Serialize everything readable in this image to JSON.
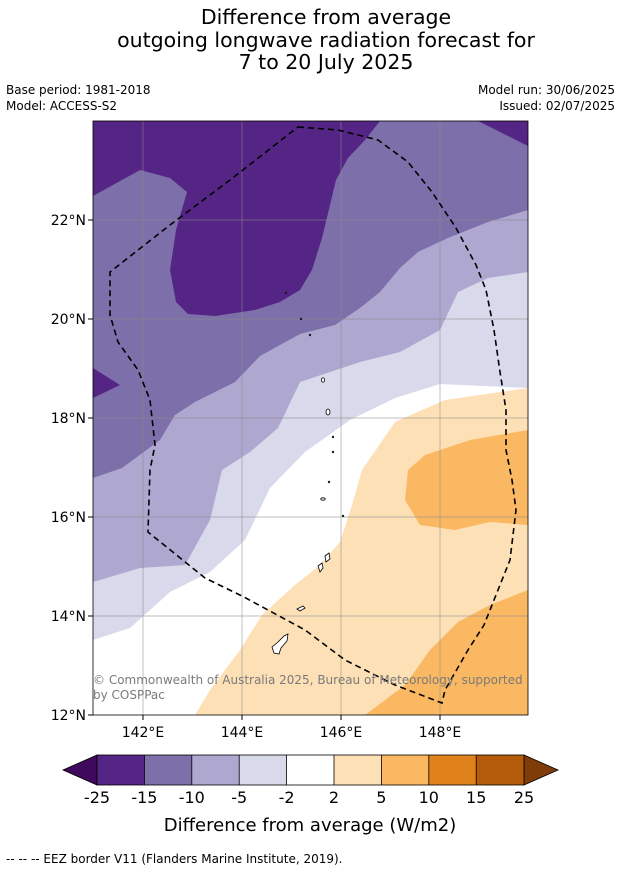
{
  "title": {
    "line1": "Difference from average",
    "line2": "outgoing longwave radiation forecast for",
    "line3": "7 to 20 July 2025"
  },
  "meta": {
    "base_period": "Base period: 1981-2018",
    "model": "Model: ACCESS-S2",
    "model_run": "Model run: 30/06/2025",
    "issued": "Issued: 02/07/2025"
  },
  "map": {
    "lat_labels": [
      "12°N",
      "14°N",
      "16°N",
      "18°N",
      "20°N",
      "22°N"
    ],
    "lon_labels": [
      "142°E",
      "144°E",
      "146°E",
      "148°E"
    ],
    "copyright": {
      "line1": "© Commonwealth of Australia 2025, Bureau of Meteorology, supported",
      "line2": "by COSPPac"
    }
  },
  "colorbar": {
    "ticks": [
      "-25",
      "-15",
      "-10",
      "-5",
      "-2",
      "2",
      "5",
      "10",
      "15",
      "25"
    ],
    "label": "Difference from average (W/m2)",
    "colors": [
      "#552586",
      "#7d70aa",
      "#aea7cf",
      "#d8d9ea",
      "#ffffff",
      "#fde0b6",
      "#fbb862",
      "#e0821c",
      "#b35a0b"
    ],
    "under_color": "#3f0a5e",
    "over_color": "#7f3b08"
  },
  "footer": "--  --  -- EEZ border V11 (Flanders Marine Institute, 2019)."
}
